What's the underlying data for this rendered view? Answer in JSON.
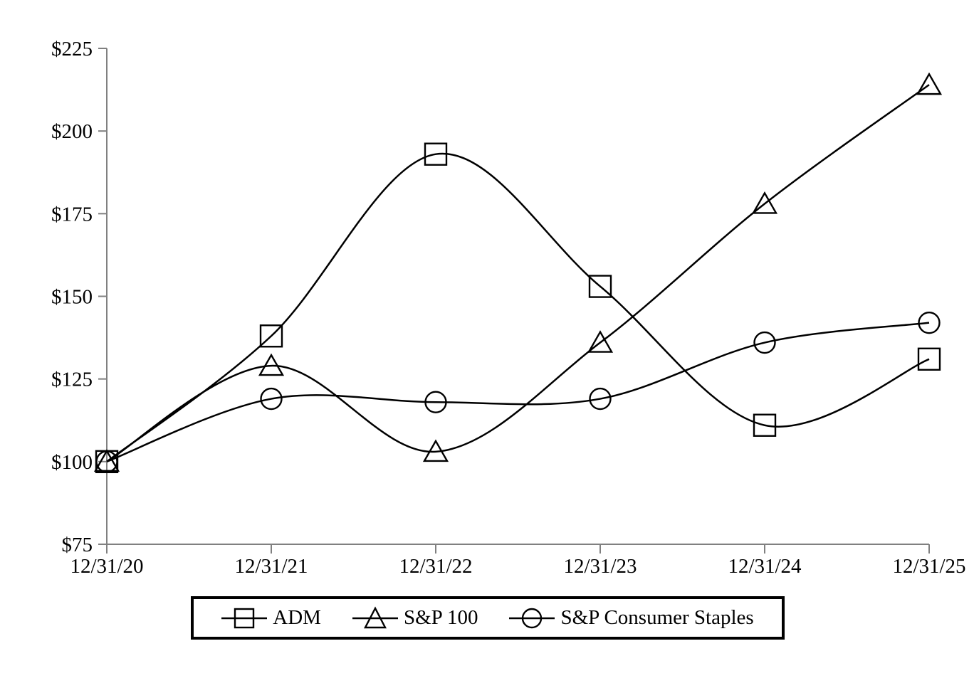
{
  "chart_data": {
    "type": "line",
    "title": "",
    "xlabel": "",
    "ylabel": "",
    "x_categories": [
      "12/31/20",
      "12/31/21",
      "12/31/22",
      "12/31/23",
      "12/31/24",
      "12/31/25"
    ],
    "y_ticks": [
      {
        "label": "$225",
        "value": 225
      },
      {
        "label": "$200",
        "value": 200
      },
      {
        "label": "$175",
        "value": 175
      },
      {
        "label": "$150",
        "value": 150
      },
      {
        "label": "$125",
        "value": 125
      },
      {
        "label": "$100",
        "value": 100
      },
      {
        "label": "$75",
        "value": 75
      }
    ],
    "ylim": [
      75,
      225
    ],
    "grid": false,
    "smoothed_lines": true,
    "legend_position": "bottom",
    "line_color": "#000000",
    "axis_color": "#808080",
    "background_color": "#ffffff",
    "series": [
      {
        "name": "ADM",
        "marker": "square",
        "values": [
          100,
          138,
          193,
          153,
          111,
          131
        ]
      },
      {
        "name": "S&P 100",
        "marker": "triangle",
        "values": [
          100,
          129,
          103,
          136,
          178,
          214
        ]
      },
      {
        "name": "S&P Consumer Staples",
        "marker": "circle",
        "values": [
          100,
          119,
          118,
          119,
          136,
          142
        ]
      }
    ]
  }
}
